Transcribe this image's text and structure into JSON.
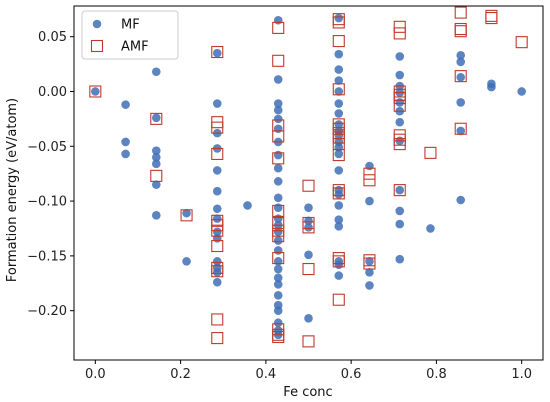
{
  "chart_data": {
    "type": "scatter",
    "xlabel": "Fe conc",
    "ylabel": "Formation energy (eV/atom)",
    "xlim": [
      -0.05,
      1.05
    ],
    "ylim": [
      -0.245,
      0.078
    ],
    "xticks": [
      "0.0",
      "0.2",
      "0.4",
      "0.6",
      "0.8",
      "1.0"
    ],
    "yticks": [
      "0.05",
      "0.00",
      "−0.05",
      "−0.10",
      "−0.15",
      "−0.20"
    ],
    "xtick_values": [
      0.0,
      0.2,
      0.4,
      0.6,
      0.8,
      1.0
    ],
    "ytick_values": [
      0.05,
      0.0,
      -0.05,
      -0.1,
      -0.15,
      -0.2
    ],
    "grid": false,
    "legend": "top-left",
    "series": [
      {
        "name": "MF",
        "marker": "circle",
        "color": "#3f6eb5",
        "points": [
          [
            0.0,
            0.0
          ],
          [
            0.071,
            -0.012
          ],
          [
            0.071,
            -0.046
          ],
          [
            0.071,
            -0.057
          ],
          [
            0.143,
            0.018
          ],
          [
            0.143,
            -0.024
          ],
          [
            0.143,
            -0.054
          ],
          [
            0.143,
            -0.06
          ],
          [
            0.143,
            -0.066
          ],
          [
            0.143,
            -0.085
          ],
          [
            0.143,
            -0.113
          ],
          [
            0.214,
            -0.111
          ],
          [
            0.214,
            -0.155
          ],
          [
            0.286,
            0.035
          ],
          [
            0.286,
            -0.011
          ],
          [
            0.286,
            -0.038
          ],
          [
            0.286,
            -0.052
          ],
          [
            0.286,
            -0.072
          ],
          [
            0.286,
            -0.091
          ],
          [
            0.286,
            -0.107
          ],
          [
            0.286,
            -0.116
          ],
          [
            0.286,
            -0.128
          ],
          [
            0.286,
            -0.134
          ],
          [
            0.286,
            -0.155
          ],
          [
            0.286,
            -0.161
          ],
          [
            0.286,
            -0.165
          ],
          [
            0.286,
            -0.174
          ],
          [
            0.357,
            -0.104
          ],
          [
            0.429,
            0.065
          ],
          [
            0.429,
            0.011
          ],
          [
            0.429,
            -0.011
          ],
          [
            0.429,
            -0.017
          ],
          [
            0.429,
            -0.025
          ],
          [
            0.429,
            -0.034
          ],
          [
            0.429,
            -0.046
          ],
          [
            0.429,
            -0.058
          ],
          [
            0.429,
            -0.07
          ],
          [
            0.429,
            -0.082
          ],
          [
            0.429,
            -0.097
          ],
          [
            0.429,
            -0.106
          ],
          [
            0.429,
            -0.116
          ],
          [
            0.429,
            -0.122
          ],
          [
            0.429,
            -0.128
          ],
          [
            0.429,
            -0.136
          ],
          [
            0.429,
            -0.145
          ],
          [
            0.429,
            -0.155
          ],
          [
            0.429,
            -0.162
          ],
          [
            0.429,
            -0.17
          ],
          [
            0.429,
            -0.176
          ],
          [
            0.429,
            -0.186
          ],
          [
            0.429,
            -0.195
          ],
          [
            0.429,
            -0.2
          ],
          [
            0.429,
            -0.211
          ],
          [
            0.429,
            -0.218
          ],
          [
            0.429,
            -0.222
          ],
          [
            0.5,
            -0.106
          ],
          [
            0.5,
            -0.118
          ],
          [
            0.5,
            -0.124
          ],
          [
            0.5,
            -0.149
          ],
          [
            0.5,
            -0.207
          ],
          [
            0.571,
            0.067
          ],
          [
            0.571,
            0.034
          ],
          [
            0.571,
            0.02
          ],
          [
            0.571,
            0.01
          ],
          [
            0.571,
            0.0
          ],
          [
            0.571,
            -0.011
          ],
          [
            0.571,
            -0.02
          ],
          [
            0.571,
            -0.03
          ],
          [
            0.571,
            -0.036
          ],
          [
            0.571,
            -0.04
          ],
          [
            0.571,
            -0.046
          ],
          [
            0.571,
            -0.051
          ],
          [
            0.571,
            -0.057
          ],
          [
            0.571,
            -0.072
          ],
          [
            0.571,
            -0.09
          ],
          [
            0.571,
            -0.094
          ],
          [
            0.571,
            -0.104
          ],
          [
            0.571,
            -0.117
          ],
          [
            0.571,
            -0.123
          ],
          [
            0.571,
            -0.155
          ],
          [
            0.571,
            -0.158
          ],
          [
            0.571,
            -0.168
          ],
          [
            0.643,
            -0.068
          ],
          [
            0.643,
            -0.1
          ],
          [
            0.643,
            -0.155
          ],
          [
            0.643,
            -0.165
          ],
          [
            0.643,
            -0.177
          ],
          [
            0.714,
            0.032
          ],
          [
            0.714,
            0.015
          ],
          [
            0.714,
            0.005
          ],
          [
            0.714,
            -0.001
          ],
          [
            0.714,
            -0.01
          ],
          [
            0.714,
            -0.018
          ],
          [
            0.714,
            -0.028
          ],
          [
            0.714,
            -0.045
          ],
          [
            0.714,
            -0.09
          ],
          [
            0.714,
            -0.109
          ],
          [
            0.714,
            -0.121
          ],
          [
            0.714,
            -0.153
          ],
          [
            0.786,
            -0.125
          ],
          [
            0.857,
            0.033
          ],
          [
            0.857,
            0.027
          ],
          [
            0.857,
            0.013
          ],
          [
            0.857,
            -0.01
          ],
          [
            0.857,
            -0.036
          ],
          [
            0.857,
            -0.099
          ],
          [
            0.929,
            0.007
          ],
          [
            0.929,
            0.004
          ],
          [
            1.0,
            0.0
          ]
        ]
      },
      {
        "name": "AMF",
        "marker": "square",
        "color": "#c0392b",
        "points": [
          [
            0.0,
            0.0
          ],
          [
            0.143,
            -0.025
          ],
          [
            0.143,
            -0.077
          ],
          [
            0.214,
            -0.113
          ],
          [
            0.286,
            0.036
          ],
          [
            0.286,
            -0.028
          ],
          [
            0.286,
            -0.033
          ],
          [
            0.286,
            -0.057
          ],
          [
            0.286,
            -0.118
          ],
          [
            0.286,
            -0.122
          ],
          [
            0.286,
            -0.127
          ],
          [
            0.286,
            -0.141
          ],
          [
            0.286,
            -0.161
          ],
          [
            0.286,
            -0.164
          ],
          [
            0.286,
            -0.208
          ],
          [
            0.286,
            -0.225
          ],
          [
            0.429,
            0.058
          ],
          [
            0.429,
            0.028
          ],
          [
            0.429,
            -0.031
          ],
          [
            0.429,
            -0.041
          ],
          [
            0.429,
            -0.061
          ],
          [
            0.429,
            -0.109
          ],
          [
            0.429,
            -0.12
          ],
          [
            0.429,
            -0.127
          ],
          [
            0.429,
            -0.132
          ],
          [
            0.429,
            -0.152
          ],
          [
            0.429,
            -0.217
          ],
          [
            0.429,
            -0.222
          ],
          [
            0.429,
            -0.224
          ],
          [
            0.5,
            -0.086
          ],
          [
            0.5,
            -0.12
          ],
          [
            0.5,
            -0.124
          ],
          [
            0.5,
            -0.162
          ],
          [
            0.5,
            -0.228
          ],
          [
            0.571,
            0.066
          ],
          [
            0.571,
            0.063
          ],
          [
            0.571,
            0.046
          ],
          [
            0.571,
            0.002
          ],
          [
            0.571,
            -0.03
          ],
          [
            0.571,
            -0.034
          ],
          [
            0.571,
            -0.038
          ],
          [
            0.571,
            -0.042
          ],
          [
            0.571,
            -0.048
          ],
          [
            0.571,
            -0.058
          ],
          [
            0.571,
            -0.09
          ],
          [
            0.571,
            -0.093
          ],
          [
            0.571,
            -0.152
          ],
          [
            0.571,
            -0.155
          ],
          [
            0.571,
            -0.19
          ],
          [
            0.643,
            -0.075
          ],
          [
            0.643,
            -0.081
          ],
          [
            0.643,
            -0.154
          ],
          [
            0.643,
            -0.157
          ],
          [
            0.714,
            0.059
          ],
          [
            0.714,
            0.053
          ],
          [
            0.714,
            0.0
          ],
          [
            0.714,
            -0.003
          ],
          [
            0.714,
            -0.006
          ],
          [
            0.714,
            -0.013
          ],
          [
            0.714,
            -0.04
          ],
          [
            0.714,
            -0.044
          ],
          [
            0.714,
            -0.048
          ],
          [
            0.714,
            -0.09
          ],
          [
            0.786,
            -0.056
          ],
          [
            0.857,
            0.072
          ],
          [
            0.857,
            0.057
          ],
          [
            0.857,
            0.055
          ],
          [
            0.857,
            0.014
          ],
          [
            0.857,
            -0.034
          ],
          [
            0.929,
            0.069
          ],
          [
            0.929,
            0.067
          ],
          [
            1.0,
            0.045
          ]
        ]
      }
    ]
  }
}
